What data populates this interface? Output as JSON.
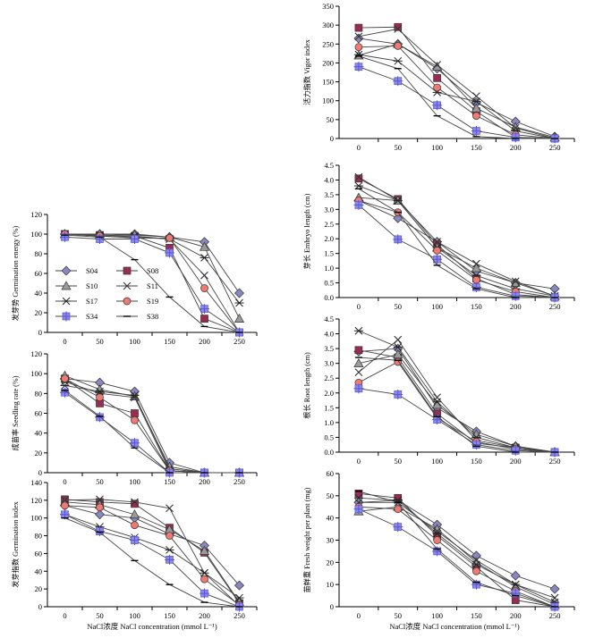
{
  "chart_data": [
    {
      "id": "germ_energy",
      "type": "line",
      "ylabel": "发芽势 Germination energy (%)",
      "xlabel": "",
      "x": [
        0,
        50,
        100,
        150,
        200,
        250
      ],
      "ylim": [
        0,
        120
      ],
      "yticks": [
        0,
        20,
        40,
        60,
        80,
        100,
        120
      ],
      "legend": {
        "placement": "left"
      },
      "series": [
        {
          "name": "S04",
          "values": [
            100,
            100,
            100,
            97,
            92,
            40
          ]
        },
        {
          "name": "S08",
          "values": [
            100,
            99,
            98,
            86,
            14,
            0
          ]
        },
        {
          "name": "S10",
          "values": [
            100,
            100,
            99,
            97,
            87,
            14
          ]
        },
        {
          "name": "S11",
          "values": [
            100,
            99,
            98,
            95,
            58,
            0
          ]
        },
        {
          "name": "S17",
          "values": [
            100,
            98,
            97,
            95,
            76,
            30
          ]
        },
        {
          "name": "S19",
          "values": [
            100,
            98,
            96,
            96,
            45,
            0
          ]
        },
        {
          "name": "S34",
          "values": [
            97,
            95,
            95,
            81,
            24,
            0
          ]
        },
        {
          "name": "S38",
          "values": [
            99,
            97,
            74,
            36,
            6,
            0
          ]
        }
      ]
    },
    {
      "id": "seedling_rate",
      "type": "line",
      "ylabel": "成苗率 Seedling rate (%)",
      "xlabel": "",
      "x": [
        0,
        50,
        100,
        150,
        200,
        250
      ],
      "ylim": [
        0,
        120
      ],
      "yticks": [
        0,
        20,
        40,
        60,
        80,
        100,
        120
      ],
      "series": [
        {
          "name": "S04",
          "values": [
            95,
            91,
            82,
            10,
            0,
            0
          ]
        },
        {
          "name": "S08",
          "values": [
            95,
            70,
            60,
            2,
            0,
            0
          ]
        },
        {
          "name": "S10",
          "values": [
            98,
            84,
            77,
            6,
            0,
            0
          ]
        },
        {
          "name": "S11",
          "values": [
            92,
            80,
            76,
            2,
            0,
            0
          ]
        },
        {
          "name": "S17",
          "values": [
            88,
            82,
            78,
            4,
            0,
            0
          ]
        },
        {
          "name": "S19",
          "values": [
            95,
            76,
            53,
            2,
            0,
            0
          ]
        },
        {
          "name": "S34",
          "values": [
            81,
            56,
            30,
            0,
            0,
            0
          ]
        },
        {
          "name": "S38",
          "values": [
            83,
            57,
            25,
            0,
            0,
            0
          ]
        }
      ]
    },
    {
      "id": "germ_index",
      "type": "line",
      "ylabel": "发芽指数 Germination index",
      "xlabel": "NaCl浓度 NaCl concentration (mmol L⁻¹)",
      "x": [
        0,
        50,
        100,
        150,
        200,
        250
      ],
      "ylim": [
        0,
        140
      ],
      "yticks": [
        0,
        20,
        40,
        60,
        80,
        100,
        120,
        140
      ],
      "series": [
        {
          "name": "S04",
          "values": [
            114,
            104,
            100,
            82,
            69,
            24
          ]
        },
        {
          "name": "S08",
          "values": [
            121,
            118,
            116,
            89,
            61,
            4
          ]
        },
        {
          "name": "S10",
          "values": [
            118,
            115,
            104,
            87,
            63,
            5
          ]
        },
        {
          "name": "S11",
          "values": [
            120,
            121,
            118,
            111,
            38,
            1
          ]
        },
        {
          "name": "S17",
          "values": [
            104,
            90,
            78,
            64,
            38,
            10
          ]
        },
        {
          "name": "S19",
          "values": [
            114,
            112,
            92,
            80,
            31,
            2
          ]
        },
        {
          "name": "S34",
          "values": [
            104,
            85,
            75,
            53,
            15,
            0
          ]
        },
        {
          "name": "S38",
          "values": [
            100,
            84,
            52,
            25,
            5,
            0
          ]
        }
      ]
    },
    {
      "id": "vigor",
      "type": "line",
      "ylabel": "活力指数 Vigor index",
      "xlabel": "",
      "x": [
        0,
        50,
        100,
        150,
        200,
        250
      ],
      "ylim": [
        0,
        350
      ],
      "yticks": [
        0,
        50,
        100,
        150,
        200,
        250,
        300,
        350
      ],
      "series": [
        {
          "name": "S04",
          "values": [
            265,
            250,
            185,
            95,
            45,
            5
          ]
        },
        {
          "name": "S08",
          "values": [
            293,
            295,
            160,
            72,
            3,
            0
          ]
        },
        {
          "name": "S10",
          "values": [
            220,
            250,
            190,
            80,
            30,
            3
          ]
        },
        {
          "name": "S11",
          "values": [
            270,
            290,
            195,
            112,
            28,
            0
          ]
        },
        {
          "name": "S17",
          "values": [
            222,
            205,
            122,
            98,
            20,
            0
          ]
        },
        {
          "name": "S19",
          "values": [
            242,
            245,
            135,
            60,
            10,
            0
          ]
        },
        {
          "name": "S34",
          "values": [
            190,
            152,
            88,
            20,
            3,
            0
          ]
        },
        {
          "name": "S38",
          "values": [
            218,
            185,
            60,
            5,
            0,
            0
          ]
        }
      ]
    },
    {
      "id": "embryo",
      "type": "line",
      "ylabel": "芽长 Embryo length (cm)",
      "xlabel": "",
      "x": [
        0,
        50,
        100,
        150,
        200,
        250
      ],
      "ylim": [
        0,
        4.5
      ],
      "yticks": [
        0,
        0.5,
        1.0,
        1.5,
        2.0,
        2.5,
        3.0,
        3.5,
        4.0,
        4.5
      ],
      "series": [
        {
          "name": "S04",
          "values": [
            3.3,
            2.7,
            1.9,
            0.9,
            0.5,
            0.3
          ]
        },
        {
          "name": "S08",
          "values": [
            4.05,
            3.35,
            1.8,
            0.65,
            0.1,
            0
          ]
        },
        {
          "name": "S10",
          "values": [
            3.4,
            3.3,
            1.7,
            1.0,
            0.5,
            0.05
          ]
        },
        {
          "name": "S11",
          "values": [
            4.1,
            3.3,
            1.9,
            1.15,
            0.55,
            0.05
          ]
        },
        {
          "name": "S17",
          "values": [
            3.8,
            3.3,
            1.7,
            0.75,
            0.3,
            0.05
          ]
        },
        {
          "name": "S19",
          "values": [
            3.3,
            2.9,
            1.6,
            0.6,
            0.2,
            0
          ]
        },
        {
          "name": "S34",
          "values": [
            3.15,
            1.98,
            1.3,
            0.35,
            0.05,
            0
          ]
        },
        {
          "name": "S38",
          "values": [
            3.7,
            2.9,
            1.1,
            0.3,
            0,
            0
          ]
        }
      ]
    },
    {
      "id": "root",
      "type": "line",
      "ylabel": "根长 Root length (cm)",
      "xlabel": "",
      "x": [
        0,
        50,
        100,
        150,
        200,
        250
      ],
      "ylim": [
        0,
        4.5
      ],
      "yticks": [
        0,
        0.5,
        1.0,
        1.5,
        2.0,
        2.5,
        3.0,
        3.5,
        4.0,
        4.5
      ],
      "series": [
        {
          "name": "S04",
          "values": [
            3.4,
            3.5,
            1.5,
            0.7,
            0.2,
            0
          ]
        },
        {
          "name": "S08",
          "values": [
            3.45,
            3.2,
            1.3,
            0.3,
            0.15,
            0
          ]
        },
        {
          "name": "S10",
          "values": [
            3.0,
            3.3,
            1.6,
            0.6,
            0.2,
            0
          ]
        },
        {
          "name": "S11",
          "values": [
            2.7,
            3.8,
            1.85,
            0.4,
            0.15,
            0
          ]
        },
        {
          "name": "S17",
          "values": [
            4.1,
            3.55,
            1.7,
            0.5,
            0.15,
            0
          ]
        },
        {
          "name": "S19",
          "values": [
            2.35,
            3.05,
            1.15,
            0.35,
            0.1,
            0
          ]
        },
        {
          "name": "S34",
          "values": [
            2.15,
            1.95,
            1.1,
            0.25,
            0.05,
            0
          ]
        },
        {
          "name": "S38",
          "values": [
            3.2,
            3.1,
            1.2,
            0.2,
            0,
            0
          ]
        }
      ]
    },
    {
      "id": "fresh",
      "type": "line",
      "ylabel": "苗鲜重 Fresh weight per plant (mg)",
      "xlabel": "NaCl浓度 NaCl concentration (mmol L⁻¹)",
      "x": [
        0,
        50,
        100,
        150,
        200,
        250
      ],
      "ylim": [
        0,
        60
      ],
      "yticks": [
        0,
        10,
        20,
        30,
        40,
        50,
        60
      ],
      "series": [
        {
          "name": "S04",
          "values": [
            47,
            48,
            37,
            23,
            14,
            8
          ]
        },
        {
          "name": "S08",
          "values": [
            51,
            49,
            32,
            18,
            3,
            0
          ]
        },
        {
          "name": "S10",
          "values": [
            43,
            45,
            35,
            20,
            9,
            1
          ]
        },
        {
          "name": "S11",
          "values": [
            47,
            47,
            34,
            21,
            10,
            4
          ]
        },
        {
          "name": "S17",
          "values": [
            49,
            48,
            33,
            19,
            10,
            2
          ]
        },
        {
          "name": "S19",
          "values": [
            45,
            44,
            30,
            16,
            7,
            0
          ]
        },
        {
          "name": "S34",
          "values": [
            44,
            36,
            25,
            10,
            6,
            0
          ]
        },
        {
          "name": "S38",
          "values": [
            52,
            47,
            26,
            11,
            5,
            0
          ]
        }
      ]
    }
  ],
  "colors": {
    "S04": "#8a87c0",
    "S08": "#9a2c54",
    "S10": "#9a9a9a",
    "S11": "#333333",
    "S17": "#222222",
    "S19": "#f07a72",
    "S34": "#8a88ee",
    "S38": "#000000"
  },
  "markers": {
    "S04": "diamond",
    "S08": "square",
    "S10": "triangle",
    "S11": "x",
    "S17": "asterisk",
    "S19": "circle",
    "S34": "square-plus",
    "S38": "dash"
  }
}
